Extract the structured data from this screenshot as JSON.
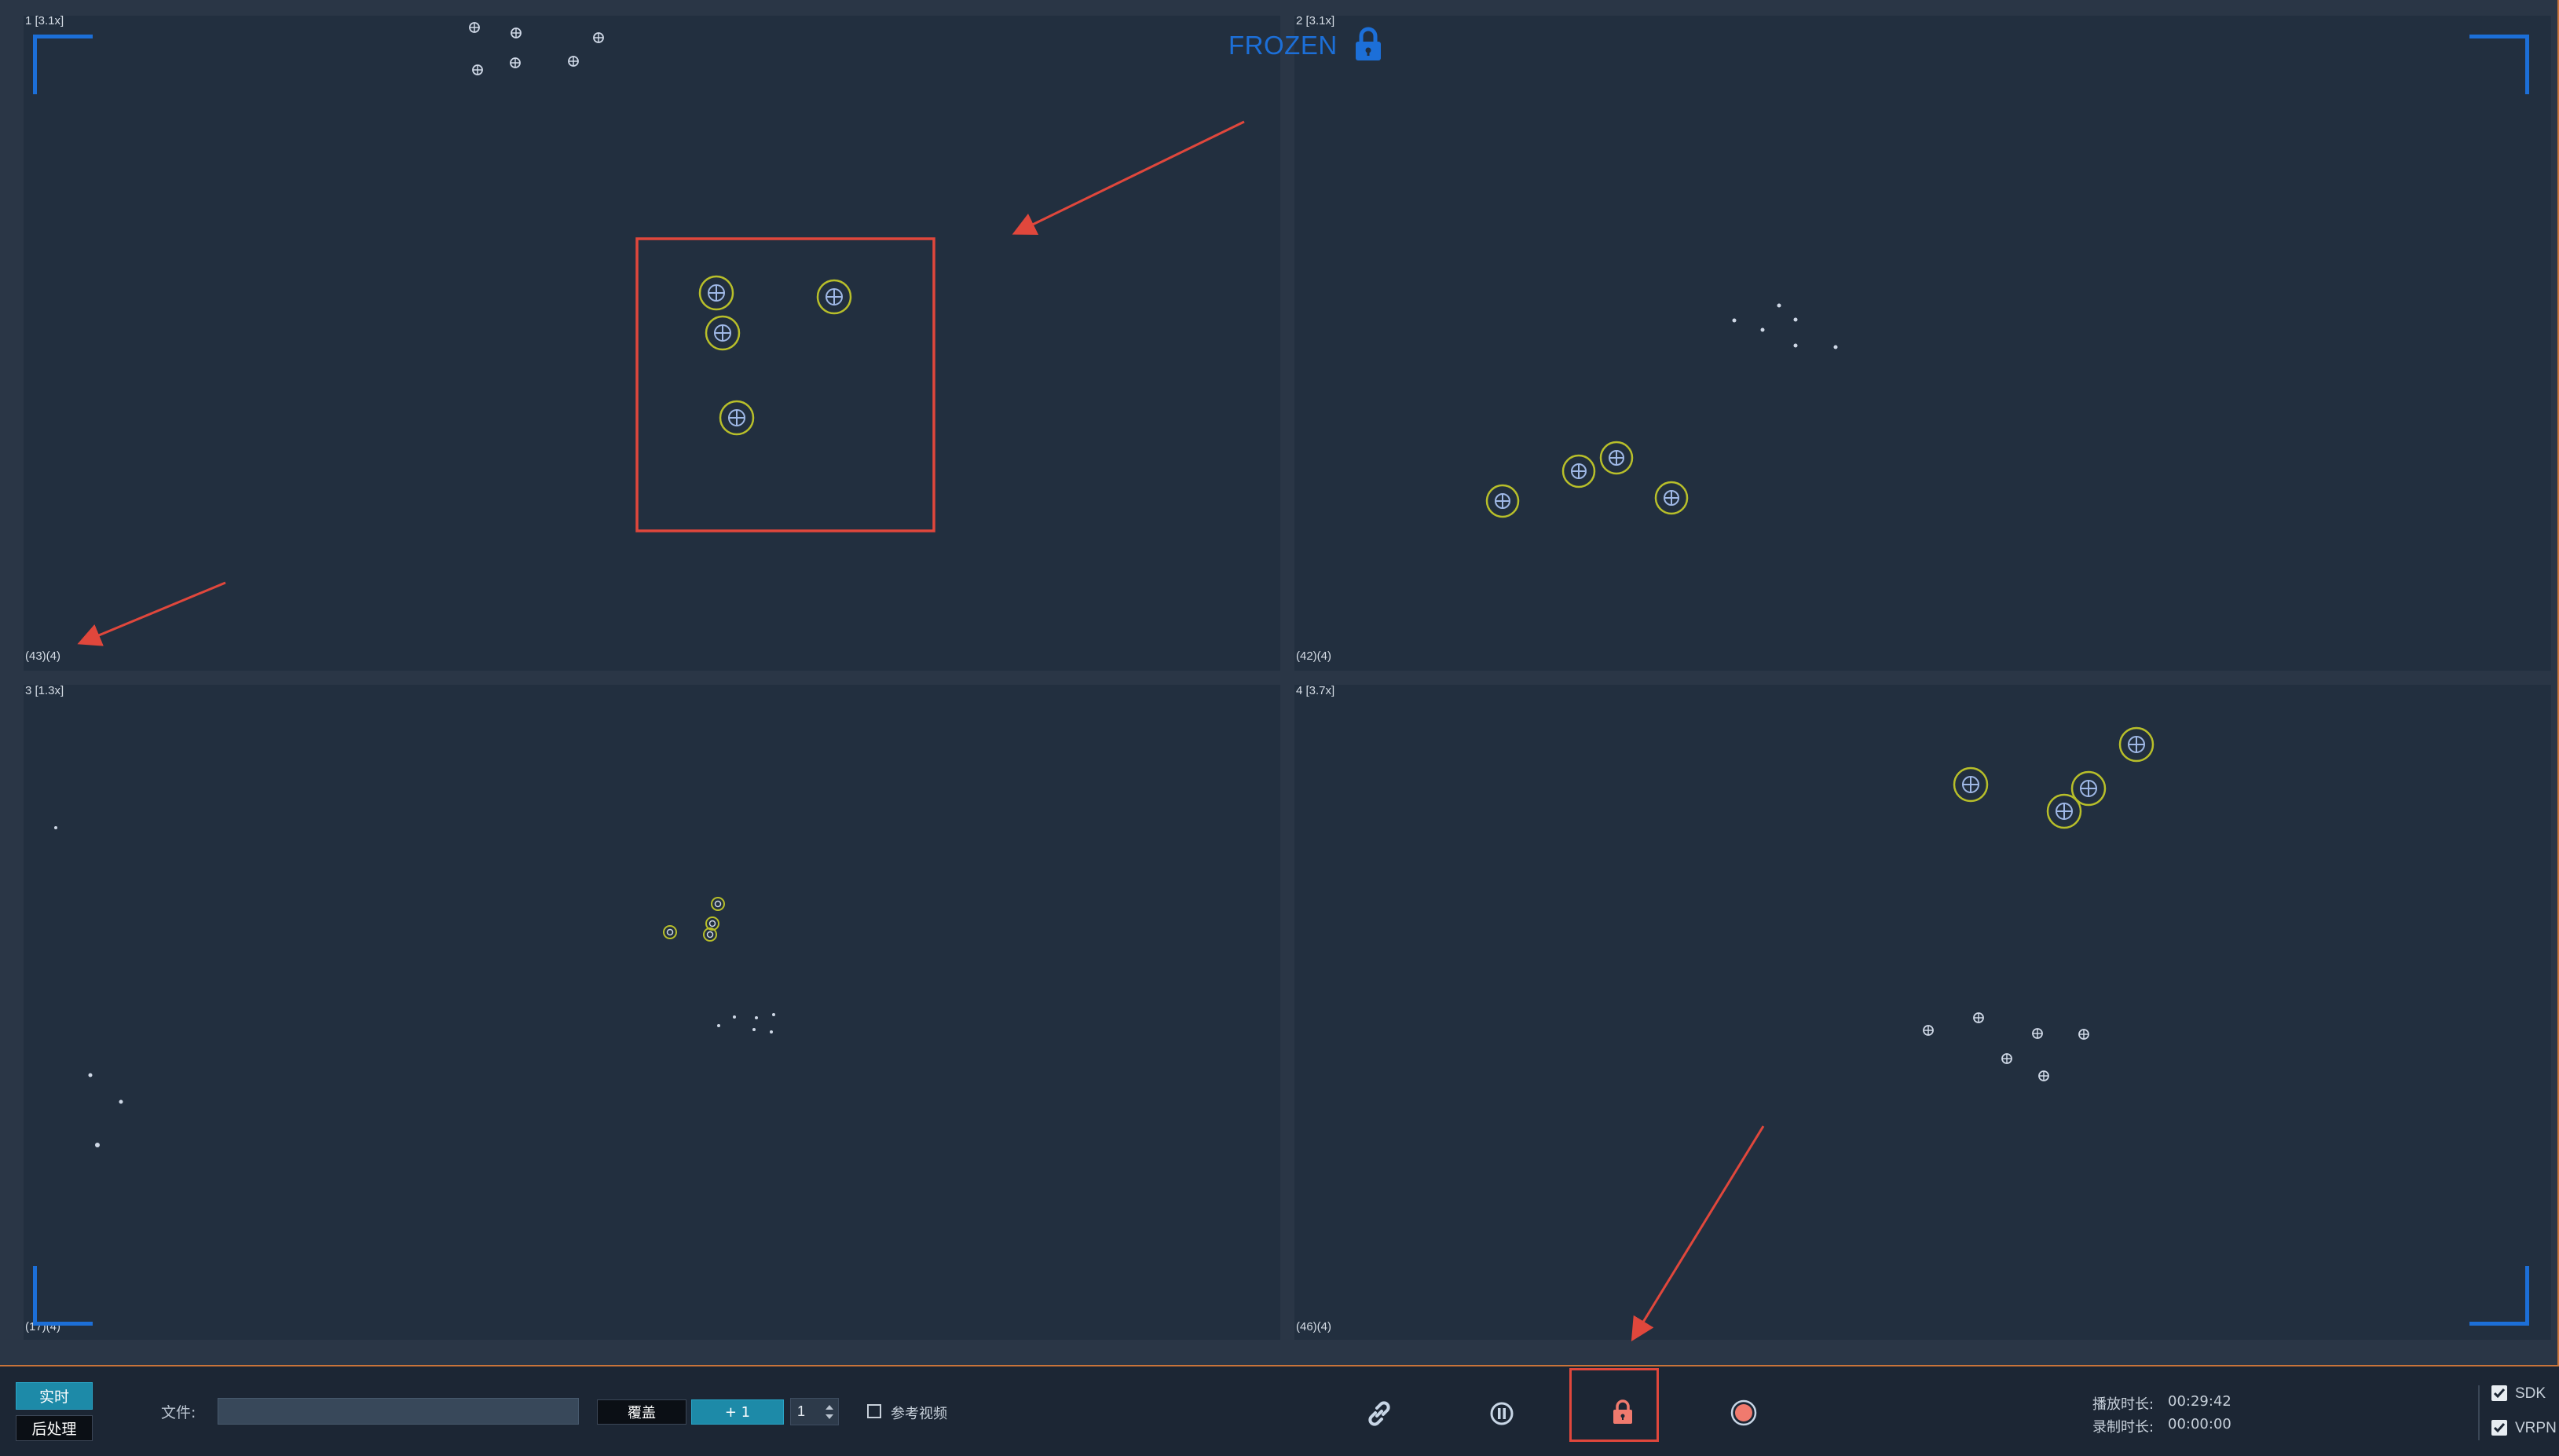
{
  "panes": [
    {
      "id": "1",
      "top_label": "1 [3.1x]",
      "bottom_label": "(43)(4)"
    },
    {
      "id": "2",
      "top_label": "2 [3.1x]",
      "bottom_label": "(42)(4)"
    },
    {
      "id": "3",
      "top_label": "3 [1.3x]",
      "bottom_label": "(17)(4)"
    },
    {
      "id": "4",
      "top_label": "4 [3.7x]",
      "bottom_label": "(46)(4)"
    }
  ],
  "status": {
    "frozen_text": "FROZEN",
    "frozen_icon": "lock-icon"
  },
  "toolbar": {
    "realtime_label": "实时",
    "postprocess_label": "后处理",
    "file_label": "文件:",
    "file_value": "",
    "overwrite_label": "覆盖",
    "plus_one_label": "+ 1",
    "spin_value": "1",
    "ref_video_label": "参考视频",
    "ref_video_checked": false,
    "icons": [
      "link-icon",
      "pause-icon",
      "lock-icon",
      "record-icon"
    ],
    "play_duration_label": "播放时长:",
    "play_duration_value": "00:29:42",
    "record_duration_label": "录制时长:",
    "record_duration_value": "00:00:00",
    "sdk_label": "SDK",
    "sdk_checked": true,
    "vrpn_label": "VRPN",
    "vrpn_checked": true
  },
  "colors": {
    "corner_accent": "#1c6fd8",
    "highlight_red": "#e0473c",
    "marker_ring": "#b8bf2a",
    "marker_cross": "#9fb8e6",
    "active_button": "#1d8aa8"
  }
}
